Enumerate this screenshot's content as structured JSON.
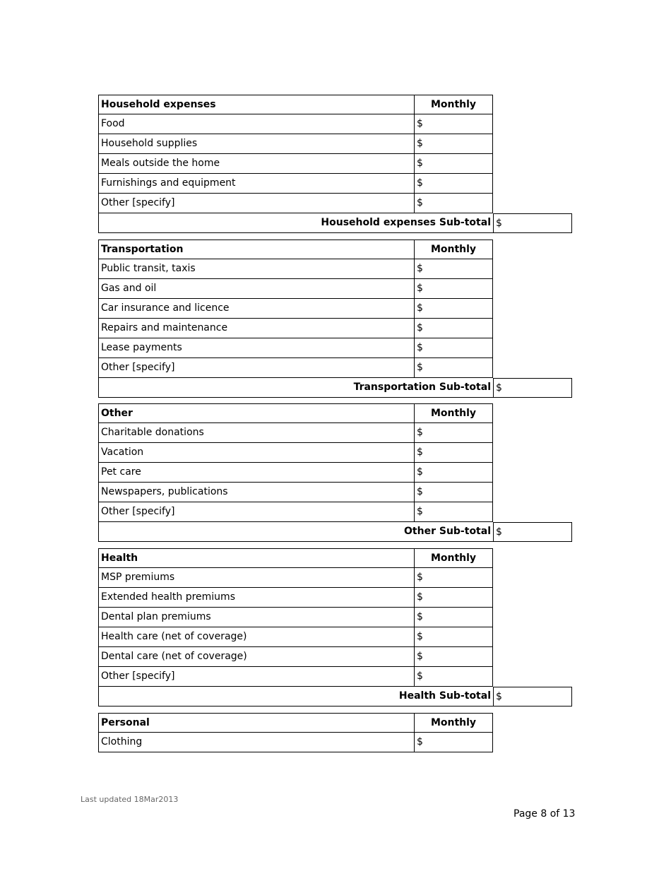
{
  "currency_symbol": "$",
  "sections": [
    {
      "title": "Household expenses",
      "column": "Monthly",
      "items": [
        "Food",
        "Household supplies",
        "Meals outside the home",
        "Furnishings and equipment",
        "Other [specify]"
      ],
      "subtotal": "Household expenses  Sub-total"
    },
    {
      "title": "Transportation",
      "column": "Monthly",
      "items": [
        "Public transit, taxis",
        "Gas and oil",
        "Car insurance and licence",
        "Repairs and maintenance",
        "Lease payments",
        "Other [specify]"
      ],
      "subtotal": "Transportation  Sub-total"
    },
    {
      "title": "Other",
      "column": "Monthly",
      "items": [
        "Charitable donations",
        "Vacation",
        "Pet care",
        "Newspapers, publications",
        "Other [specify]"
      ],
      "subtotal": "Other  Sub-total"
    },
    {
      "title": "Health",
      "column": "Monthly",
      "items": [
        "MSP premiums",
        "Extended health premiums",
        "Dental plan premiums",
        "Health care (net of coverage)",
        "Dental care (net of coverage)",
        "Other [specify]"
      ],
      "subtotal": "Health  Sub-total"
    },
    {
      "title": "Personal",
      "column": "Monthly",
      "items": [
        "Clothing"
      ],
      "subtotal": null
    }
  ],
  "footer": {
    "last_updated": "Last updated 18Mar2013",
    "page": "Page 8 of 13"
  }
}
